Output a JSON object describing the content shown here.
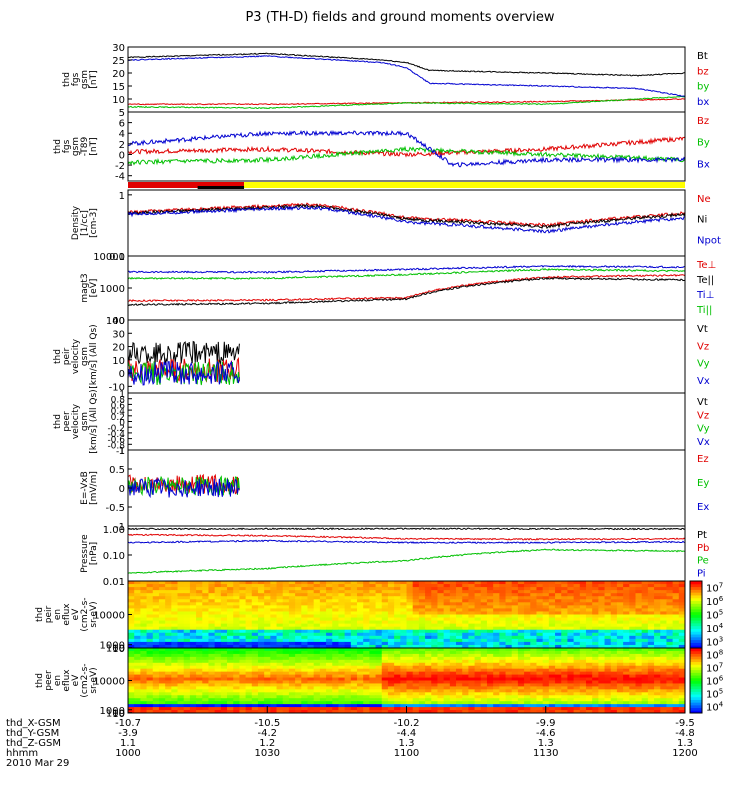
{
  "title": "P3 (TH-D) fields and ground moments overview",
  "colors": {
    "black": "#000000",
    "red": "#e00000",
    "green": "#00c000",
    "blue": "#0000d0",
    "yellow": "#ffff00",
    "axis": "#000000"
  },
  "chart_data": [
    {
      "type": "line",
      "ylabel": [
        "thd",
        "fgs",
        "gsm",
        "[nT]"
      ],
      "ylim": [
        5,
        30
      ],
      "yticks": [
        5,
        10,
        15,
        20,
        25,
        30
      ],
      "series": [
        {
          "name": "Bt",
          "color": "black",
          "x": [
            1000,
            1030,
            1055,
            1100,
            1105,
            1130,
            1150,
            1200
          ],
          "y": [
            26,
            27.5,
            25,
            24,
            21,
            20,
            19,
            20
          ]
        },
        {
          "name": "bz",
          "color": "red",
          "x": [
            1000,
            1030,
            1100,
            1130,
            1200
          ],
          "y": [
            8,
            8,
            8.5,
            9,
            10
          ]
        },
        {
          "name": "by",
          "color": "green",
          "x": [
            1000,
            1030,
            1100,
            1130,
            1200
          ],
          "y": [
            7,
            6.5,
            8.5,
            8,
            11
          ]
        },
        {
          "name": "bx",
          "color": "blue",
          "x": [
            1000,
            1030,
            1055,
            1100,
            1105,
            1130,
            1150,
            1200
          ],
          "y": [
            25,
            26.5,
            24,
            22,
            16,
            15,
            14,
            11
          ]
        }
      ]
    },
    {
      "type": "line",
      "ylabel": [
        "thd",
        "fgs",
        "gsm",
        "-T89",
        "[nT]"
      ],
      "ylim": [
        -5,
        8
      ],
      "yticks": [
        -4,
        -2,
        0,
        2,
        4,
        6
      ],
      "series": [
        {
          "name": "Bz",
          "color": "red",
          "x": [
            1000,
            1030,
            1100,
            1130,
            1200
          ],
          "y": [
            0.5,
            1,
            0,
            1,
            3
          ]
        },
        {
          "name": "By",
          "color": "green",
          "x": [
            1000,
            1030,
            1100,
            1130,
            1200
          ],
          "y": [
            -1.5,
            -1,
            1,
            0,
            -1
          ]
        },
        {
          "name": "Bx",
          "color": "blue",
          "x": [
            1000,
            1030,
            1055,
            1100,
            1110,
            1130,
            1200
          ],
          "y": [
            2,
            4,
            4,
            4,
            -2,
            -1,
            -1
          ]
        }
      ]
    },
    {
      "type": "bar",
      "note": "mode bar",
      "segments": [
        {
          "color": "red",
          "x0": 1000,
          "x1": 1025
        },
        {
          "color": "yellow",
          "x0": 1025,
          "x1": 1200
        }
      ]
    },
    {
      "type": "line",
      "scale": "log",
      "ylabel": [
        "Density",
        "[1/cc]",
        "[cm-3]"
      ],
      "ylim": [
        0.1,
        1.2
      ],
      "yticks": [
        0.1,
        1.0
      ],
      "series": [
        {
          "name": "Ne",
          "color": "red",
          "x": [
            1000,
            1040,
            1100,
            1130,
            1200
          ],
          "y": [
            0.52,
            0.7,
            0.42,
            0.32,
            0.5
          ]
        },
        {
          "name": "Ni",
          "color": "black",
          "x": [
            1000,
            1040,
            1100,
            1130,
            1200
          ],
          "y": [
            0.5,
            0.66,
            0.4,
            0.3,
            0.48
          ]
        },
        {
          "name": "Npot",
          "color": "blue",
          "x": [
            1000,
            1040,
            1100,
            1130,
            1200
          ],
          "y": [
            0.48,
            0.62,
            0.36,
            0.25,
            0.42
          ]
        }
      ]
    },
    {
      "type": "line",
      "scale": "log",
      "ylabel": [
        "magt3",
        "[eV]"
      ],
      "ylim": [
        100,
        10000
      ],
      "yticks": [
        100,
        1000,
        10000
      ],
      "series": [
        {
          "name": "Te⊥",
          "color": "red",
          "x": [
            1000,
            1030,
            1100,
            1130,
            1200
          ],
          "y": [
            400,
            420,
            500,
            2200,
            2500
          ]
        },
        {
          "name": "Te||",
          "color": "black",
          "x": [
            1000,
            1030,
            1100,
            1130,
            1200
          ],
          "y": [
            300,
            330,
            450,
            2000,
            1800
          ]
        },
        {
          "name": "Ti⊥",
          "color": "blue",
          "x": [
            1000,
            1030,
            1100,
            1130,
            1200
          ],
          "y": [
            3200,
            3100,
            3800,
            4800,
            4500
          ]
        },
        {
          "name": "Ti||",
          "color": "green",
          "x": [
            1000,
            1030,
            1100,
            1130,
            1200
          ],
          "y": [
            2000,
            2000,
            2600,
            3800,
            3400
          ]
        }
      ]
    },
    {
      "type": "line",
      "ylabel": [
        "thd",
        "peir",
        "velocity",
        "gsm",
        "[km/s] (All Qs)"
      ],
      "ylim": [
        -15,
        40
      ],
      "yticks": [
        -10,
        0,
        10,
        20,
        30,
        40
      ],
      "series": [
        {
          "name": "Vt",
          "color": "black",
          "x": [
            1000,
            1024
          ],
          "y": [
            15,
            15
          ]
        },
        {
          "name": "Vz",
          "color": "red",
          "x": [
            1000,
            1024
          ],
          "y": [
            2,
            2
          ]
        },
        {
          "name": "Vy",
          "color": "green",
          "x": [
            1000,
            1024
          ],
          "y": [
            0,
            0
          ]
        },
        {
          "name": "Vx",
          "color": "blue",
          "x": [
            1000,
            1024
          ],
          "y": [
            0,
            0
          ]
        }
      ]
    },
    {
      "type": "line",
      "ylabel": [
        "thd",
        "peer",
        "velocity",
        "gsm",
        "[km/s] (All Qs)"
      ],
      "ylim": [
        -1,
        1
      ],
      "yticks": [
        -1.0,
        -0.8,
        -0.6,
        -0.4,
        -0.2,
        0.0,
        0.2,
        0.4,
        0.6,
        0.8,
        1.0
      ],
      "series": [
        {
          "name": "Vt",
          "color": "black",
          "x": [],
          "y": []
        },
        {
          "name": "Vz",
          "color": "red",
          "x": [],
          "y": []
        },
        {
          "name": "Vy",
          "color": "green",
          "x": [],
          "y": []
        },
        {
          "name": "Vx",
          "color": "blue",
          "x": [],
          "y": []
        }
      ]
    },
    {
      "type": "line",
      "ylabel": [
        "E=-VxB",
        "[mV/m]"
      ],
      "ylim": [
        -1,
        1
      ],
      "yticks": [
        -1.0,
        -0.5,
        0.0,
        0.5,
        1.0
      ],
      "series": [
        {
          "name": "Ez",
          "color": "red",
          "x": [
            1000,
            1024
          ],
          "y": [
            0.1,
            0.1
          ]
        },
        {
          "name": "Ey",
          "color": "green",
          "x": [
            1000,
            1024
          ],
          "y": [
            0.05,
            0.05
          ]
        },
        {
          "name": "Ex",
          "color": "blue",
          "x": [
            1000,
            1024
          ],
          "y": [
            0,
            0
          ]
        }
      ]
    },
    {
      "type": "line",
      "scale": "log",
      "ylabel": [
        "Pressure",
        "[nPa]"
      ],
      "ylim": [
        0.01,
        1.3
      ],
      "yticks": [
        0.01,
        0.1,
        1.0
      ],
      "yticklabels": [
        "0.01",
        "0.10",
        "1.00"
      ],
      "series": [
        {
          "name": "Pt",
          "color": "black",
          "x": [
            1000,
            1100,
            1200
          ],
          "y": [
            1.0,
            1.02,
            1.0
          ]
        },
        {
          "name": "Pb",
          "color": "red",
          "x": [
            1000,
            1030,
            1100,
            1130,
            1200
          ],
          "y": [
            0.6,
            0.55,
            0.42,
            0.4,
            0.42
          ]
        },
        {
          "name": "Pe",
          "color": "green",
          "x": [
            1000,
            1030,
            1100,
            1130,
            1200
          ],
          "y": [
            0.02,
            0.03,
            0.06,
            0.16,
            0.14
          ]
        },
        {
          "name": "Pi",
          "color": "blue",
          "x": [
            1000,
            1030,
            1100,
            1130,
            1200
          ],
          "y": [
            0.3,
            0.35,
            0.3,
            0.3,
            0.32
          ]
        }
      ]
    },
    {
      "type": "heatmap",
      "ylabel": [
        "thd",
        "peir",
        "en",
        "eflux",
        "eV",
        "(cm2-s-",
        "sr-eV)"
      ],
      "ylim": [
        5,
        20000
      ],
      "yticks": [
        10,
        100,
        1000,
        10000
      ],
      "colorbar": {
        "ticks": [
          3,
          4,
          5,
          6,
          7
        ]
      }
    },
    {
      "type": "heatmap",
      "ylabel": [
        "thd",
        "peer",
        "en",
        "eflux",
        "eV",
        "(cm2-s-",
        "sr-eV)"
      ],
      "ylim": [
        5,
        20000
      ],
      "yticks": [
        10,
        100,
        1000,
        10000
      ],
      "colorbar": {
        "ticks": [
          4,
          5,
          6,
          7,
          8
        ]
      }
    }
  ],
  "xaxis": {
    "ticks": [
      1000,
      1030,
      1100,
      1130,
      1200
    ],
    "rows": [
      {
        "label": "thd_X-GSM",
        "values": [
          "-10.7",
          "-10.5",
          "-10.2",
          "-9.9",
          "-9.5"
        ]
      },
      {
        "label": "thd_Y-GSM",
        "values": [
          "-3.9",
          "-4.2",
          "-4.4",
          "-4.6",
          "-4.8"
        ]
      },
      {
        "label": "thd_Z-GSM",
        "values": [
          "1.1",
          "1.2",
          "1.3",
          "1.3",
          "1.3"
        ]
      },
      {
        "label": "hhmm",
        "values": [
          "1000",
          "1030",
          "1100",
          "1130",
          "1200"
        ]
      }
    ],
    "date": "2010 Mar 29"
  }
}
